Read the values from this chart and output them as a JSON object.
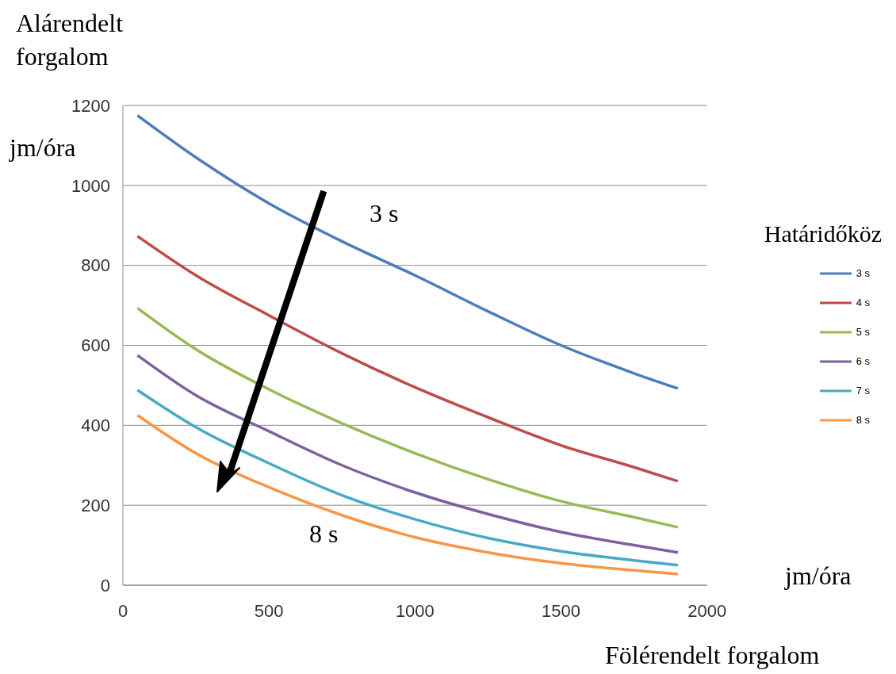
{
  "chart_data": {
    "type": "line",
    "ylabel": "Alárendelt forgalom",
    "xlabel": "Fölérendelt forgalom",
    "legend_title": "Határidőköz",
    "annotations": [
      "jm/óra",
      "jm/óra",
      "3 s",
      "8 s"
    ],
    "x": [
      50,
      250,
      500,
      750,
      1000,
      1250,
      1500,
      1750,
      1900
    ],
    "series": [
      {
        "name": "3 s",
        "color": "#4a7ebb",
        "values": [
          1175,
          1070,
          955,
          860,
          775,
          685,
          600,
          530,
          492
        ]
      },
      {
        "name": "4 s",
        "color": "#be4b48",
        "values": [
          873,
          775,
          675,
          580,
          495,
          420,
          350,
          295,
          260
        ]
      },
      {
        "name": "5 s",
        "color": "#98b954",
        "values": [
          693,
          590,
          490,
          405,
          330,
          265,
          210,
          170,
          145
        ]
      },
      {
        "name": "6 s",
        "color": "#7d60a0",
        "values": [
          575,
          475,
          385,
          300,
          232,
          178,
          133,
          100,
          82
        ]
      },
      {
        "name": "7 s",
        "color": "#46aac5",
        "values": [
          488,
          395,
          305,
          225,
          165,
          118,
          85,
          62,
          50
        ]
      },
      {
        "name": "8 s",
        "color": "#f79646",
        "values": [
          425,
          330,
          245,
          175,
          120,
          82,
          55,
          37,
          28
        ]
      }
    ],
    "xlim": [
      0,
      2000
    ],
    "xticks": [
      0,
      500,
      1000,
      1500,
      2000
    ],
    "ylim": [
      0,
      1200
    ],
    "yticks": [
      0,
      200,
      400,
      600,
      800,
      1000,
      1200
    ],
    "grid": "y",
    "legend": "right",
    "marker": "none",
    "line_style": "solid"
  }
}
